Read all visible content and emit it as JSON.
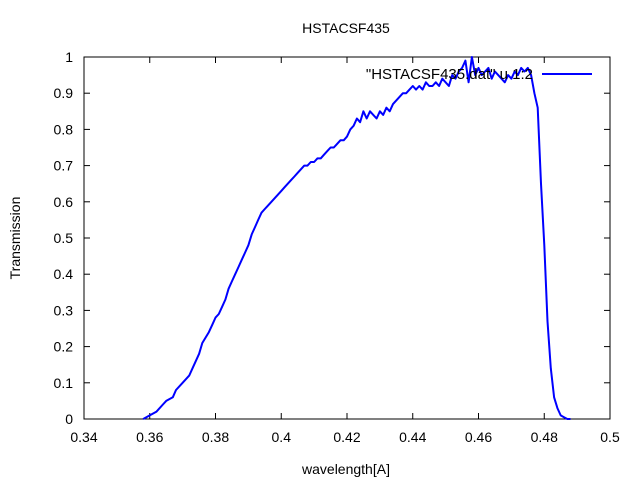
{
  "chart_data": {
    "type": "line",
    "title": "HSTACSF435",
    "xlabel": "wavelength[A]",
    "ylabel": "Transmission",
    "xlim": [
      0.34,
      0.5
    ],
    "ylim": [
      0,
      1
    ],
    "grid": false,
    "legend_position": "top-right",
    "xticks": [
      "0.34",
      "0.36",
      "0.38",
      "0.4",
      "0.42",
      "0.44",
      "0.46",
      "0.48",
      "0.5"
    ],
    "yticks": [
      "0",
      "0.1",
      "0.2",
      "0.3",
      "0.4",
      "0.5",
      "0.6",
      "0.7",
      "0.8",
      "0.9",
      "1"
    ],
    "series": [
      {
        "name": "\"HSTACSF435.dat\" u 1:2",
        "color": "#0000ff",
        "x": [
          0.358,
          0.36,
          0.362,
          0.364,
          0.365,
          0.367,
          0.368,
          0.37,
          0.372,
          0.373,
          0.375,
          0.376,
          0.378,
          0.379,
          0.38,
          0.381,
          0.382,
          0.383,
          0.384,
          0.385,
          0.386,
          0.387,
          0.388,
          0.389,
          0.39,
          0.391,
          0.392,
          0.393,
          0.394,
          0.395,
          0.396,
          0.397,
          0.398,
          0.399,
          0.4,
          0.401,
          0.402,
          0.403,
          0.404,
          0.405,
          0.406,
          0.407,
          0.408,
          0.409,
          0.41,
          0.411,
          0.412,
          0.413,
          0.414,
          0.415,
          0.416,
          0.417,
          0.418,
          0.419,
          0.42,
          0.421,
          0.422,
          0.423,
          0.424,
          0.425,
          0.426,
          0.427,
          0.428,
          0.429,
          0.43,
          0.431,
          0.432,
          0.433,
          0.434,
          0.435,
          0.436,
          0.437,
          0.438,
          0.439,
          0.44,
          0.441,
          0.442,
          0.443,
          0.444,
          0.445,
          0.446,
          0.447,
          0.448,
          0.449,
          0.45,
          0.451,
          0.452,
          0.453,
          0.454,
          0.455,
          0.456,
          0.457,
          0.458,
          0.459,
          0.46,
          0.461,
          0.462,
          0.463,
          0.464,
          0.465,
          0.466,
          0.467,
          0.468,
          0.469,
          0.47,
          0.471,
          0.472,
          0.473,
          0.474,
          0.475,
          0.476,
          0.477,
          0.478,
          0.479,
          0.48,
          0.481,
          0.482,
          0.483,
          0.484,
          0.485,
          0.486,
          0.487,
          0.488
        ],
        "y": [
          0.0,
          0.01,
          0.02,
          0.04,
          0.05,
          0.06,
          0.08,
          0.1,
          0.12,
          0.14,
          0.18,
          0.21,
          0.24,
          0.26,
          0.28,
          0.29,
          0.31,
          0.33,
          0.36,
          0.38,
          0.4,
          0.42,
          0.44,
          0.46,
          0.48,
          0.51,
          0.53,
          0.55,
          0.57,
          0.58,
          0.59,
          0.6,
          0.61,
          0.62,
          0.63,
          0.64,
          0.65,
          0.66,
          0.67,
          0.68,
          0.69,
          0.7,
          0.7,
          0.71,
          0.71,
          0.72,
          0.72,
          0.73,
          0.74,
          0.75,
          0.75,
          0.76,
          0.77,
          0.77,
          0.78,
          0.8,
          0.81,
          0.83,
          0.82,
          0.85,
          0.83,
          0.85,
          0.84,
          0.83,
          0.85,
          0.84,
          0.86,
          0.85,
          0.87,
          0.88,
          0.89,
          0.9,
          0.9,
          0.91,
          0.92,
          0.91,
          0.92,
          0.91,
          0.93,
          0.92,
          0.92,
          0.93,
          0.92,
          0.94,
          0.93,
          0.92,
          0.95,
          0.94,
          0.96,
          0.97,
          0.99,
          0.93,
          1.0,
          0.95,
          0.97,
          0.95,
          0.96,
          0.97,
          0.94,
          0.96,
          0.95,
          0.94,
          0.93,
          0.95,
          0.94,
          0.96,
          0.95,
          0.97,
          0.96,
          0.97,
          0.95,
          0.9,
          0.86,
          0.65,
          0.48,
          0.27,
          0.14,
          0.06,
          0.03,
          0.01,
          0.005,
          0.0,
          0.0
        ]
      }
    ]
  }
}
